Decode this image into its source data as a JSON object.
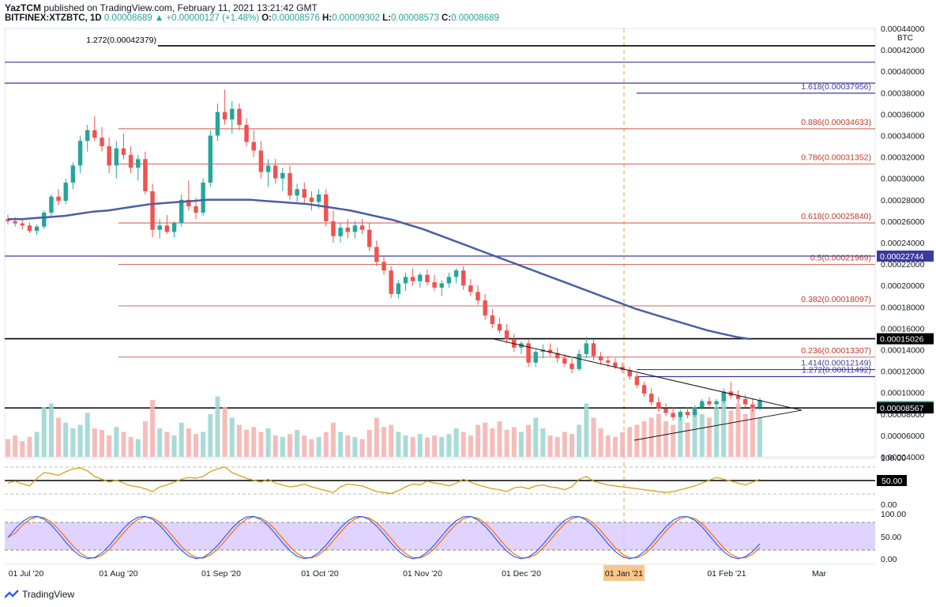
{
  "header": {
    "line1_user": "YazTCM",
    "line1_rest": "published on TradingView.com, February 11, 2021 13:21:42 GMT",
    "symbol": "BITFINEX:XTZBTC, 1D",
    "price": "0.00008689",
    "arrow": "▲",
    "change": "+0.00000127 (+1.48%)",
    "o_label": "O:",
    "o_value": "0.00008576",
    "h_label": "H:",
    "h_value": "0.00009302",
    "l_label": "L:",
    "l_value": "0.00008573",
    "c_label": "C:",
    "c_value": "0.00008689"
  },
  "footer": {
    "brand": "TradingView"
  },
  "colors": {
    "up": "#26a69a",
    "down": "#ef5350",
    "ma": "#4a5fa3",
    "fib": "#c0392b",
    "ext": "#3a3aa0",
    "rsi": "#d4a017",
    "stoch_k": "#2962ff",
    "stoch_d": "#ff6d00",
    "stoch_band": "#d6c4ff"
  },
  "chart_data": {
    "type": "candlestick",
    "currency_unit": "BTC",
    "y_ticks": [
      "0.00044000",
      "0.00042000",
      "0.00040000",
      "0.00038000",
      "0.00036000",
      "0.00034000",
      "0.00032000",
      "0.00030000",
      "0.00028000",
      "0.00026000",
      "0.00024000",
      "0.00022000",
      "0.00020000",
      "0.00018000",
      "0.00016000",
      "0.00014000",
      "0.00012000",
      "0.00010000",
      "0.00008000",
      "0.00006000",
      "0.00004000"
    ],
    "ylim": [
      4e-05,
      0.00044
    ],
    "x_ticks": [
      "01 Jul '20",
      "01 Aug '20",
      "01 Sep '20",
      "01 Oct '20",
      "01 Nov '20",
      "01 Dec '20",
      "01 Jan '21",
      "01 Feb '21",
      "Mar"
    ],
    "highlighted_x_tick": "01 Jan '21",
    "horizontal_levels": [
      {
        "label": "1.272(0.00042379)",
        "value": 0.00042379,
        "style": "black"
      },
      {
        "label": "",
        "value": 0.0004085,
        "style": "ext"
      },
      {
        "label": "",
        "value": 0.000389,
        "style": "ext"
      },
      {
        "label": "1.618(0.00037956)",
        "value": 0.00037956,
        "style": "ext"
      },
      {
        "label": "0.886(0.00034633)",
        "value": 0.00034633,
        "style": "fib"
      },
      {
        "label": "0.786(0.00031352)",
        "value": 0.00031352,
        "style": "fib"
      },
      {
        "label": "0.618(0.00025840)",
        "value": 0.0002584,
        "style": "fib"
      },
      {
        "label": "",
        "value": 0.00022744,
        "style": "ext"
      },
      {
        "label": "0.5(0.00021969)",
        "value": 0.00021969,
        "style": "fib"
      },
      {
        "label": "0.382(0.00018097)",
        "value": 0.00018097,
        "style": "fib"
      },
      {
        "label": "",
        "value": 0.00015026,
        "style": "black"
      },
      {
        "label": "0.236(0.00013307)",
        "value": 0.00013307,
        "style": "fib"
      },
      {
        "label": "1.414(0.00012149)",
        "value": 0.00012149,
        "style": "ext"
      },
      {
        "label": "1.272(0.00011492)",
        "value": 0.00011492,
        "style": "ext"
      },
      {
        "label": "",
        "value": 8.567e-05,
        "style": "black"
      }
    ],
    "price_tags": [
      {
        "text": "0.00022744",
        "value": 0.00022744,
        "bg": "#3a3aa0",
        "fg": "#ffffff"
      },
      {
        "text": "0.00015026",
        "value": 0.00015026,
        "bg": "#000000",
        "fg": "#ffffff"
      },
      {
        "text": "0.00008689",
        "value": 8.689e-05,
        "bg": "#26a69a",
        "fg": "#ffffff"
      },
      {
        "text": "0.00008567",
        "value": 8.567e-05,
        "bg": "#000000",
        "fg": "#ffffff"
      }
    ],
    "rsi": {
      "ticks": [
        "100.00",
        "50.00",
        "0.00"
      ],
      "level_tag": "50.00"
    },
    "stoch": {
      "ticks": [
        "100.00",
        "50.00",
        "0.00"
      ]
    },
    "ohlc": [
      [
        0.000262,
        0.000266,
        0.000257,
        0.00026
      ],
      [
        0.00026,
        0.000264,
        0.000255,
        0.000258
      ],
      [
        0.000258,
        0.000262,
        0.000252,
        0.000256
      ],
      [
        0.000256,
        0.000259,
        0.000249,
        0.000251
      ],
      [
        0.000251,
        0.000257,
        0.000247,
        0.000255
      ],
      [
        0.000255,
        0.00027,
        0.000253,
        0.000268
      ],
      [
        0.000268,
        0.000285,
        0.000265,
        0.000283
      ],
      [
        0.000283,
        0.00029,
        0.000275,
        0.000279
      ],
      [
        0.000279,
        0.0003,
        0.000276,
        0.000296
      ],
      [
        0.000296,
        0.000315,
        0.00029,
        0.000312
      ],
      [
        0.000312,
        0.00034,
        0.000305,
        0.000335
      ],
      [
        0.000335,
        0.00035,
        0.000325,
        0.000345
      ],
      [
        0.000345,
        0.000358,
        0.000335,
        0.000338
      ],
      [
        0.000338,
        0.000348,
        0.000325,
        0.00033
      ],
      [
        0.00033,
        0.000338,
        0.000305,
        0.000312
      ],
      [
        0.000312,
        0.000335,
        0.0003,
        0.000328
      ],
      [
        0.000328,
        0.000342,
        0.000318,
        0.000322
      ],
      [
        0.000322,
        0.00033,
        0.000305,
        0.00031
      ],
      [
        0.00031,
        0.000322,
        0.000298,
        0.000318
      ],
      [
        0.000318,
        0.000325,
        0.000285,
        0.000288
      ],
      [
        0.000288,
        0.000295,
        0.000245,
        0.000252
      ],
      [
        0.000252,
        0.000262,
        0.000244,
        0.000256
      ],
      [
        0.000256,
        0.000266,
        0.000248,
        0.00025
      ],
      [
        0.00025,
        0.00026,
        0.000245,
        0.000258
      ],
      [
        0.000258,
        0.000285,
        0.000255,
        0.00028
      ],
      [
        0.00028,
        0.000298,
        0.00027,
        0.000274
      ],
      [
        0.000274,
        0.000282,
        0.000262,
        0.000268
      ],
      [
        0.000268,
        0.0003,
        0.000265,
        0.000296
      ],
      [
        0.000296,
        0.000345,
        0.000292,
        0.00034
      ],
      [
        0.00034,
        0.00037,
        0.000335,
        0.000362
      ],
      [
        0.000362,
        0.000383,
        0.00035,
        0.000355
      ],
      [
        0.000355,
        0.000372,
        0.000342,
        0.000365
      ],
      [
        0.000365,
        0.00037,
        0.000345,
        0.00035
      ],
      [
        0.00035,
        0.000356,
        0.00033,
        0.000334
      ],
      [
        0.000334,
        0.000345,
        0.00032,
        0.000326
      ],
      [
        0.000326,
        0.000335,
        0.0003,
        0.000306
      ],
      [
        0.000306,
        0.000318,
        0.000292,
        0.000312
      ],
      [
        0.000312,
        0.000318,
        0.000295,
        0.0003
      ],
      [
        0.0003,
        0.00031,
        0.000288,
        0.000305
      ],
      [
        0.000305,
        0.000312,
        0.00028,
        0.000284
      ],
      [
        0.000284,
        0.000295,
        0.000278,
        0.00029
      ],
      [
        0.00029,
        0.000296,
        0.000276,
        0.000282
      ],
      [
        0.000282,
        0.000288,
        0.00027,
        0.000278
      ],
      [
        0.000278,
        0.00029,
        0.000272,
        0.000285
      ],
      [
        0.000285,
        0.00029,
        0.000255,
        0.00026
      ],
      [
        0.00026,
        0.00027,
        0.00024,
        0.000246
      ],
      [
        0.000246,
        0.000258,
        0.00024,
        0.000254
      ],
      [
        0.000254,
        0.000262,
        0.000244,
        0.00025
      ],
      [
        0.00025,
        0.00026,
        0.000244,
        0.000256
      ],
      [
        0.000256,
        0.000262,
        0.000248,
        0.000252
      ],
      [
        0.000252,
        0.000258,
        0.000232,
        0.000236
      ],
      [
        0.000236,
        0.000242,
        0.000218,
        0.000222
      ],
      [
        0.000222,
        0.000228,
        0.00021,
        0.000214
      ],
      [
        0.000214,
        0.000218,
        0.000188,
        0.000192
      ],
      [
        0.000192,
        0.000205,
        0.000188,
        0.000202
      ],
      [
        0.000202,
        0.000212,
        0.000195,
        0.000208
      ],
      [
        0.000208,
        0.000216,
        0.0002,
        0.000204
      ],
      [
        0.000204,
        0.000212,
        0.000198,
        0.00021
      ],
      [
        0.00021,
        0.000215,
        0.0002,
        0.000203
      ],
      [
        0.000203,
        0.00021,
        0.000195,
        0.000198
      ],
      [
        0.000198,
        0.000205,
        0.00019,
        0.000202
      ],
      [
        0.000202,
        0.000212,
        0.000198,
        0.000208
      ],
      [
        0.000208,
        0.000216,
        0.000202,
        0.000214
      ],
      [
        0.000214,
        0.000218,
        0.000196,
        0.0002
      ],
      [
        0.0002,
        0.000206,
        0.00019,
        0.000194
      ],
      [
        0.000194,
        0.0002,
        0.000182,
        0.000186
      ],
      [
        0.000186,
        0.000192,
        0.000168,
        0.000172
      ],
      [
        0.000172,
        0.000178,
        0.00016,
        0.000164
      ],
      [
        0.000164,
        0.00017,
        0.000155,
        0.000158
      ],
      [
        0.000158,
        0.000164,
        0.000146,
        0.00015
      ],
      [
        0.00015,
        0.000155,
        0.000138,
        0.000142
      ],
      [
        0.000142,
        0.000148,
        0.000136,
        0.000146
      ],
      [
        0.000146,
        0.00015,
        0.000124,
        0.000128
      ],
      [
        0.000128,
        0.00014,
        0.000124,
        0.000138
      ],
      [
        0.000138,
        0.000145,
        0.000132,
        0.00014
      ],
      [
        0.00014,
        0.000146,
        0.000134,
        0.000137
      ],
      [
        0.000137,
        0.000142,
        0.000128,
        0.000132
      ],
      [
        0.000132,
        0.000136,
        0.000124,
        0.000127
      ],
      [
        0.000127,
        0.000132,
        0.000118,
        0.000122
      ],
      [
        0.000122,
        0.00014,
        0.00012,
        0.000136
      ],
      [
        0.000136,
        0.000152,
        0.000132,
        0.000146
      ],
      [
        0.000146,
        0.00015,
        0.00013,
        0.000134
      ],
      [
        0.000134,
        0.000138,
        0.000126,
        0.00013
      ],
      [
        0.00013,
        0.000134,
        0.000124,
        0.000128
      ],
      [
        0.000128,
        0.000132,
        0.000122,
        0.000124
      ],
      [
        0.000124,
        0.000128,
        0.000118,
        0.000121
      ],
      [
        0.000121,
        0.000124,
        0.000112,
        0.000115
      ],
      [
        0.000115,
        0.000118,
        0.000104,
        0.000107
      ],
      [
        0.000107,
        0.00011,
        9.6e-05,
        9.9e-05
      ],
      [
        9.9e-05,
        0.000104,
        8.8e-05,
        9.1e-05
      ],
      [
        9.1e-05,
        9.6e-05,
        8.2e-05,
        8.5e-05
      ],
      [
        8.5e-05,
        9e-05,
        7.8e-05,
        8.1e-05
      ],
      [
        8.1e-05,
        8.6e-05,
        7.4e-05,
        7.7e-05
      ],
      [
        7.7e-05,
        8.4e-05,
        7.4e-05,
        8.2e-05
      ],
      [
        8.2e-05,
        8.6e-05,
        7.6e-05,
        7.9e-05
      ],
      [
        7.9e-05,
        8.8e-05,
        7.7e-05,
        8.6e-05
      ],
      [
        8.6e-05,
        9.4e-05,
        8.4e-05,
        9.2e-05
      ],
      [
        9.2e-05,
        9.6e-05,
        8.6e-05,
        8.9e-05
      ],
      [
        8.9e-05,
        9.4e-05,
        8.4e-05,
        9.2e-05
      ],
      [
        9.2e-05,
        0.000104,
        9e-05,
        0.000101
      ],
      [
        0.000101,
        0.00011,
        9.4e-05,
        9.7e-05
      ],
      [
        9.7e-05,
        0.000102,
        9e-05,
        9.4e-05
      ],
      [
        9.4e-05,
        9.8e-05,
        8.6e-05,
        8.9e-05
      ],
      [
        8.9e-05,
        9.4e-05,
        8.2e-05,
        8.6e-05
      ],
      [
        8.6e-05,
        9.5e-05,
        8.3e-05,
        9.3e-05
      ]
    ],
    "volume": [
      0.25,
      0.3,
      0.22,
      0.28,
      0.35,
      0.7,
      0.75,
      0.55,
      0.48,
      0.4,
      0.45,
      0.62,
      0.4,
      0.38,
      0.3,
      0.42,
      0.35,
      0.28,
      0.25,
      0.5,
      0.8,
      0.4,
      0.35,
      0.3,
      0.48,
      0.4,
      0.32,
      0.35,
      0.6,
      0.85,
      0.7,
      0.55,
      0.45,
      0.38,
      0.42,
      0.35,
      0.4,
      0.3,
      0.28,
      0.32,
      0.38,
      0.3,
      0.25,
      0.28,
      0.35,
      0.48,
      0.35,
      0.3,
      0.28,
      0.25,
      0.38,
      0.55,
      0.42,
      0.45,
      0.35,
      0.3,
      0.28,
      0.32,
      0.27,
      0.3,
      0.28,
      0.32,
      0.4,
      0.35,
      0.3,
      0.45,
      0.48,
      0.4,
      0.5,
      0.38,
      0.42,
      0.35,
      0.45,
      0.55,
      0.4,
      0.3,
      0.28,
      0.35,
      0.32,
      0.45,
      0.75,
      0.55,
      0.4,
      0.3,
      0.28,
      0.35,
      0.42,
      0.45,
      0.5,
      0.55,
      0.6,
      0.5,
      0.45,
      0.55,
      0.48,
      0.65,
      0.6,
      0.55,
      0.7,
      0.8,
      0.65,
      0.75,
      0.6,
      0.7,
      0.55
    ],
    "ma200": [
      0.000262,
      0.000262,
      0.000263,
      0.000264,
      0.000265,
      0.000267,
      0.000269,
      0.00027,
      0.000272,
      0.000274,
      0.000276,
      0.000277,
      0.000278,
      0.000279,
      0.00028,
      0.00028,
      0.00028,
      0.00028,
      0.000279,
      0.000278,
      0.000277,
      0.000276,
      0.000274,
      0.000272,
      0.00027,
      0.000267,
      0.000264,
      0.000261,
      0.000257,
      0.000253,
      0.000248,
      0.000243,
      0.000238,
      0.000233,
      0.000228,
      0.000223,
      0.000218,
      0.000213,
      0.000208,
      0.000203,
      0.000198,
      0.000193,
      0.000188,
      0.000183,
      0.000178,
      0.000174,
      0.00017,
      0.000166,
      0.000162,
      0.000158,
      0.000155,
      0.000152,
      0.00015
    ],
    "rsi_values": [
      48,
      52,
      46,
      42,
      58,
      70,
      68,
      64,
      72,
      78,
      80,
      74,
      62,
      56,
      50,
      54,
      48,
      42,
      40,
      36,
      30,
      40,
      44,
      50,
      56,
      60,
      58,
      62,
      72,
      78,
      82,
      70,
      64,
      58,
      54,
      50,
      56,
      48,
      44,
      40,
      42,
      46,
      40,
      36,
      32,
      28,
      40,
      46,
      44,
      42,
      36,
      30,
      28,
      26,
      32,
      40,
      46,
      44,
      52,
      48,
      46,
      42,
      48,
      56,
      50,
      44,
      40,
      36,
      34,
      30,
      38,
      40,
      36,
      42,
      44,
      40,
      38,
      34,
      40,
      56,
      62,
      52,
      48,
      44,
      42,
      40,
      38,
      36,
      34,
      32,
      30,
      28,
      30,
      34,
      38,
      42,
      48,
      54,
      60,
      56,
      52,
      48,
      44,
      50,
      56
    ]
  }
}
